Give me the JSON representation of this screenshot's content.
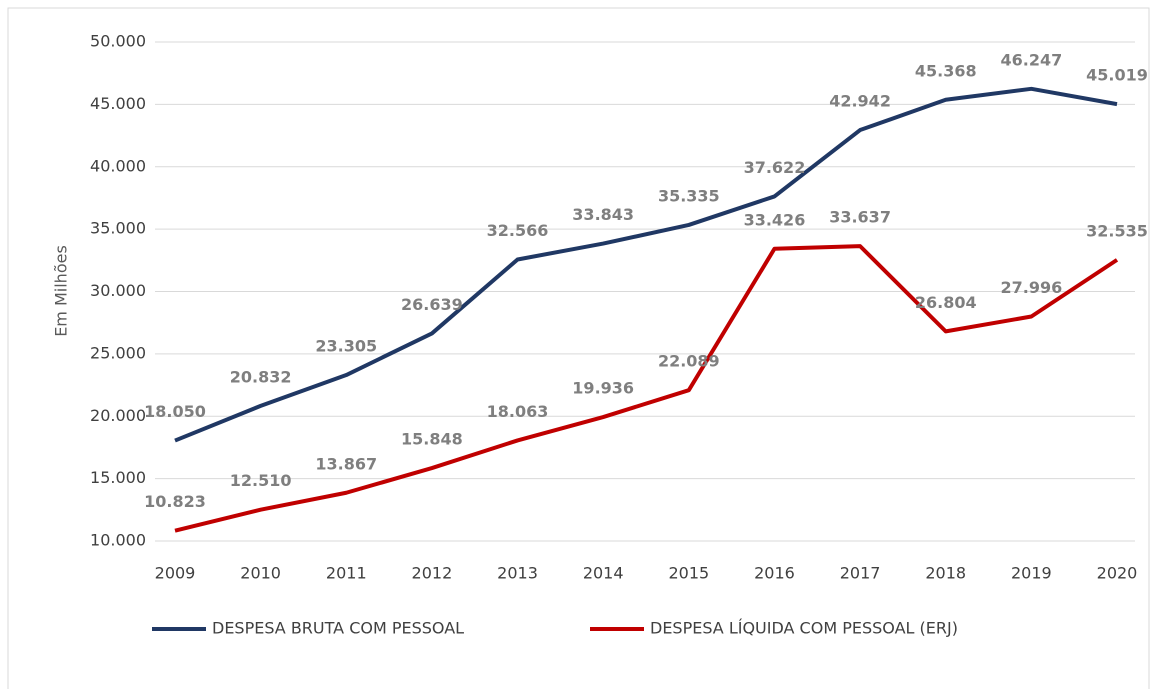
{
  "chart_data": {
    "type": "line",
    "ylabel": "Em Milhões",
    "categories": [
      "2009",
      "2010",
      "2011",
      "2012",
      "2013",
      "2014",
      "2015",
      "2016",
      "2017",
      "2018",
      "2019",
      "2020"
    ],
    "series": [
      {
        "name": "DESPESA BRUTA COM PESSOAL",
        "color": "#203864",
        "values": [
          18050,
          20832,
          23305,
          26639,
          32566,
          33843,
          35335,
          37622,
          42942,
          45368,
          46247,
          45019
        ],
        "value_labels": [
          "18.050",
          "20.832",
          "23.305",
          "26.639",
          "32.566",
          "33.843",
          "35.335",
          "37.622",
          "42.942",
          "45.368",
          "46.247",
          "45.019"
        ]
      },
      {
        "name": "DESPESA LÍQUIDA COM PESSOAL (ERJ)",
        "color": "#c00000",
        "values": [
          10823,
          12510,
          13867,
          15848,
          18063,
          19936,
          22089,
          33426,
          33637,
          26804,
          27996,
          32535
        ],
        "value_labels": [
          "10.823",
          "12.510",
          "13.867",
          "15.848",
          "18.063",
          "19.936",
          "22.089",
          "33.426",
          "33.637",
          "26.804",
          "27.996",
          "32.535"
        ]
      }
    ],
    "ylim": [
      10000,
      50000
    ],
    "yticks": [
      {
        "value": 10000,
        "label": "10.000"
      },
      {
        "value": 15000,
        "label": "15.000"
      },
      {
        "value": 20000,
        "label": "20.000"
      },
      {
        "value": 25000,
        "label": "25.000"
      },
      {
        "value": 30000,
        "label": "30.000"
      },
      {
        "value": 35000,
        "label": "35.000"
      },
      {
        "value": 40000,
        "label": "40.000"
      },
      {
        "value": 45000,
        "label": "45.000"
      },
      {
        "value": 50000,
        "label": "50.000"
      }
    ],
    "grid": true,
    "legend": "bottom"
  }
}
